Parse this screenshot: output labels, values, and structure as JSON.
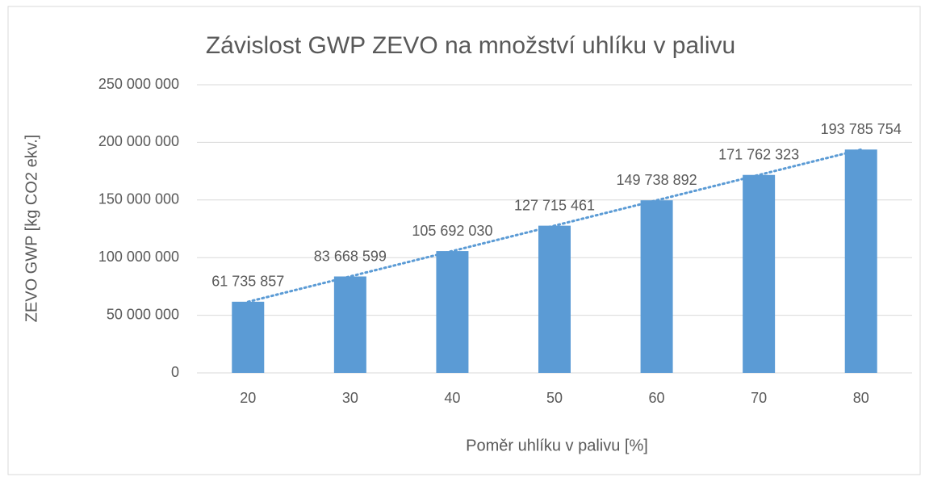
{
  "chart_data": {
    "type": "bar",
    "title": "Závislost GWP ZEVO na množství uhlíku v palivu",
    "x_label": "Poměr uhlíku v palivu [%]",
    "y_label": "ZEVO GWP [kg CO2 ekv.]",
    "categories": [
      "20",
      "30",
      "40",
      "50",
      "60",
      "70",
      "80"
    ],
    "values": [
      61735857,
      83668599,
      105692030,
      127715461,
      149738892,
      171762323,
      193785754
    ],
    "value_labels": [
      "61 735 857",
      "83 668 599",
      "105 692 030",
      "127 715 461",
      "149 738 892",
      "171 762 323",
      "193 785 754"
    ],
    "color": "#5b9bd5",
    "trendline": "linear",
    "ylim": [
      0,
      250000000
    ],
    "yticks": [
      0,
      {
        "value": 50000000,
        "label": "50 000 000"
      },
      {
        "value": 100000000,
        "label": "100 000 000"
      },
      {
        "value": 150000000,
        "label": "150 000 000"
      },
      {
        "value": 200000000,
        "label": "200 000 000"
      },
      {
        "value": 250000000,
        "label": "250 000 000"
      }
    ],
    "grid": true
  }
}
